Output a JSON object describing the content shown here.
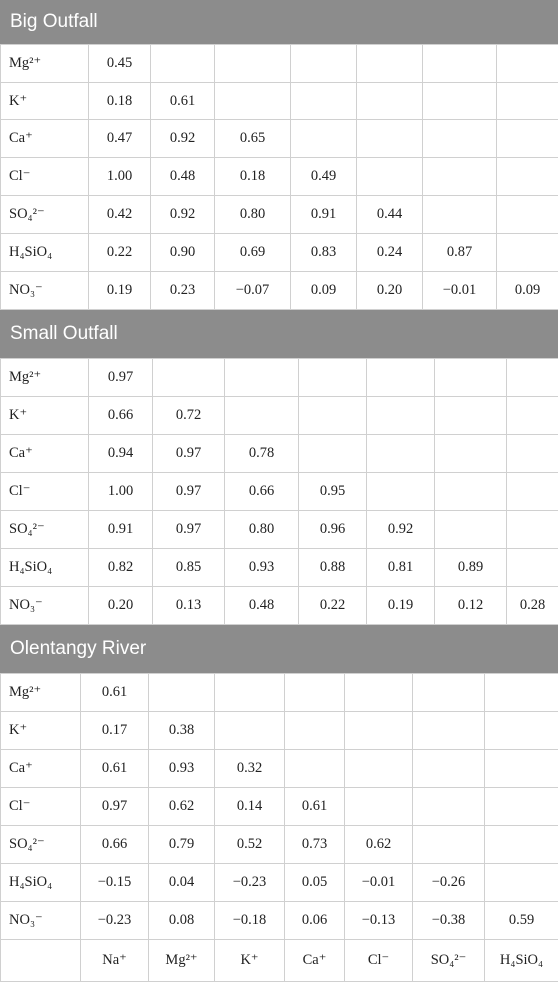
{
  "sections": [
    {
      "title": "Big Outfall",
      "rows": [
        {
          "label": "Mg²⁺",
          "values": [
            "0.45",
            "",
            "",
            "",
            "",
            "",
            ""
          ]
        },
        {
          "label": "K⁺",
          "values": [
            "0.18",
            "0.61",
            "",
            "",
            "",
            "",
            ""
          ]
        },
        {
          "label": "Ca⁺",
          "values": [
            "0.47",
            "0.92",
            "0.65",
            "",
            "",
            "",
            ""
          ]
        },
        {
          "label": "Cl⁻",
          "values": [
            "1.00",
            "0.48",
            "0.18",
            "0.49",
            "",
            "",
            ""
          ]
        },
        {
          "label": "SO₄²⁻",
          "values": [
            "0.42",
            "0.92",
            "0.80",
            "0.91",
            "0.44",
            "",
            ""
          ]
        },
        {
          "label": "H₄SiO₄",
          "values": [
            "0.22",
            "0.90",
            "0.69",
            "0.83",
            "0.24",
            "0.87",
            ""
          ]
        },
        {
          "label": "NO₃⁻",
          "values": [
            "0.19",
            "0.23",
            "−0.07",
            "0.09",
            "0.20",
            "−0.01",
            "0.09"
          ]
        }
      ]
    },
    {
      "title": "Small Outfall",
      "rows": [
        {
          "label": "Mg²⁺",
          "values": [
            "0.97",
            "",
            "",
            "",
            "",
            "",
            ""
          ]
        },
        {
          "label": "K⁺",
          "values": [
            "0.66",
            "0.72",
            "",
            "",
            "",
            "",
            ""
          ]
        },
        {
          "label": "Ca⁺",
          "values": [
            "0.94",
            "0.97",
            "0.78",
            "",
            "",
            "",
            ""
          ]
        },
        {
          "label": "Cl⁻",
          "values": [
            "1.00",
            "0.97",
            "0.66",
            "0.95",
            "",
            "",
            ""
          ]
        },
        {
          "label": "SO₄²⁻",
          "values": [
            "0.91",
            "0.97",
            "0.80",
            "0.96",
            "0.92",
            "",
            ""
          ]
        },
        {
          "label": "H₄SiO₄",
          "values": [
            "0.82",
            "0.85",
            "0.93",
            "0.88",
            "0.81",
            "0.89",
            ""
          ]
        },
        {
          "label": "NO₃⁻",
          "values": [
            "0.20",
            "0.13",
            "0.48",
            "0.22",
            "0.19",
            "0.12",
            "0.28"
          ]
        }
      ]
    },
    {
      "title": "Olentangy River",
      "rows": [
        {
          "label": "Mg²⁺",
          "values": [
            "0.61",
            "",
            "",
            "",
            "",
            "",
            ""
          ]
        },
        {
          "label": "K⁺",
          "values": [
            "0.17",
            "0.38",
            "",
            "",
            "",
            "",
            ""
          ]
        },
        {
          "label": "Ca⁺",
          "values": [
            "0.61",
            "0.93",
            "0.32",
            "",
            "",
            "",
            ""
          ]
        },
        {
          "label": "Cl⁻",
          "values": [
            "0.97",
            "0.62",
            "0.14",
            "0.61",
            "",
            "",
            ""
          ]
        },
        {
          "label": "SO₄²⁻",
          "values": [
            "0.66",
            "0.79",
            "0.52",
            "0.73",
            "0.62",
            "",
            ""
          ]
        },
        {
          "label": "H₄SiO₄",
          "values": [
            "−0.15",
            "0.04",
            "−0.23",
            "0.05",
            "−0.01",
            "−0.26",
            ""
          ]
        },
        {
          "label": "NO₃⁻",
          "values": [
            "−0.23",
            "0.08",
            "−0.18",
            "0.06",
            "−0.13",
            "−0.38",
            "0.59"
          ]
        }
      ],
      "column_headers": [
        "Na⁺",
        "Mg²⁺",
        "K⁺",
        "Ca⁺",
        "Cl⁻",
        "SO₄²⁻",
        "H₄SiO₄"
      ]
    }
  ]
}
